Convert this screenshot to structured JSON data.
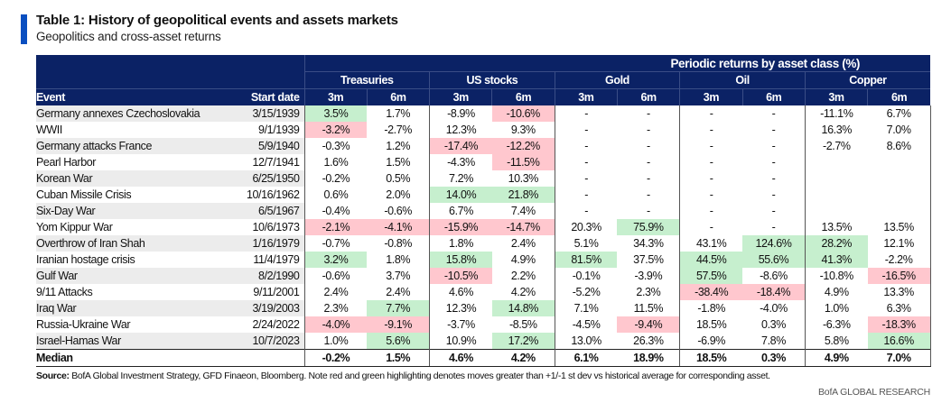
{
  "header": {
    "title": "Table 1: History of geopolitical events and assets markets",
    "subtitle": "Geopolitics and cross-asset returns"
  },
  "table": {
    "group_header": "Periodic returns by asset class (%)",
    "col_event": "Event",
    "col_date": "Start date",
    "assets": [
      "Treasuries",
      "US stocks",
      "Gold",
      "Oil",
      "Copper"
    ],
    "periods": [
      "3m",
      "6m"
    ],
    "highlight_colors": {
      "green": "#c6efce",
      "red": "#ffc7ce"
    },
    "rows": [
      {
        "event": "Germany annexes Czechoslovakia",
        "date": "3/15/1939",
        "values": [
          "3.5%",
          "1.7%",
          "-8.9%",
          "-10.6%",
          "-",
          "-",
          "-",
          "-",
          "-11.1%",
          "6.7%"
        ],
        "highlights": [
          "green",
          "",
          "",
          "red",
          "",
          "",
          "",
          "",
          "",
          ""
        ]
      },
      {
        "event": "WWII",
        "date": "9/1/1939",
        "values": [
          "-3.2%",
          "-2.7%",
          "12.3%",
          "9.3%",
          "-",
          "-",
          "-",
          "-",
          "16.3%",
          "7.0%"
        ],
        "highlights": [
          "red",
          "",
          "",
          "",
          "",
          "",
          "",
          "",
          "",
          ""
        ]
      },
      {
        "event": "Germany attacks France",
        "date": "5/9/1940",
        "values": [
          "-0.3%",
          "1.2%",
          "-17.4%",
          "-12.2%",
          "-",
          "-",
          "-",
          "-",
          "-2.7%",
          "8.6%"
        ],
        "highlights": [
          "",
          "",
          "red",
          "red",
          "",
          "",
          "",
          "",
          "",
          ""
        ]
      },
      {
        "event": "Pearl Harbor",
        "date": "12/7/1941",
        "values": [
          "1.6%",
          "1.5%",
          "-4.3%",
          "-11.5%",
          "-",
          "-",
          "-",
          "-",
          "",
          ""
        ],
        "highlights": [
          "",
          "",
          "",
          "red",
          "",
          "",
          "",
          "",
          "",
          ""
        ]
      },
      {
        "event": "Korean War",
        "date": "6/25/1950",
        "values": [
          "-0.2%",
          "0.5%",
          "7.2%",
          "10.3%",
          "-",
          "-",
          "-",
          "-",
          "",
          ""
        ],
        "highlights": [
          "",
          "",
          "",
          "",
          "",
          "",
          "",
          "",
          "",
          ""
        ]
      },
      {
        "event": "Cuban Missile Crisis",
        "date": "10/16/1962",
        "values": [
          "0.6%",
          "2.0%",
          "14.0%",
          "21.8%",
          "-",
          "-",
          "-",
          "-",
          "",
          ""
        ],
        "highlights": [
          "",
          "",
          "green",
          "green",
          "",
          "",
          "",
          "",
          "",
          ""
        ]
      },
      {
        "event": "Six-Day War",
        "date": "6/5/1967",
        "values": [
          "-0.4%",
          "-0.6%",
          "6.7%",
          "7.4%",
          "-",
          "-",
          "-",
          "-",
          "",
          ""
        ],
        "highlights": [
          "",
          "",
          "",
          "",
          "",
          "",
          "",
          "",
          "",
          ""
        ]
      },
      {
        "event": "Yom Kippur War",
        "date": "10/6/1973",
        "values": [
          "-2.1%",
          "-4.1%",
          "-15.9%",
          "-14.7%",
          "20.3%",
          "75.9%",
          "-",
          "-",
          "13.5%",
          "13.5%"
        ],
        "highlights": [
          "red",
          "red",
          "red",
          "red",
          "",
          "green",
          "",
          "",
          "",
          ""
        ]
      },
      {
        "event": "Overthrow of Iran Shah",
        "date": "1/16/1979",
        "values": [
          "-0.7%",
          "-0.8%",
          "1.8%",
          "2.4%",
          "5.1%",
          "34.3%",
          "43.1%",
          "124.6%",
          "28.2%",
          "12.1%"
        ],
        "highlights": [
          "",
          "",
          "",
          "",
          "",
          "",
          "",
          "green",
          "green",
          ""
        ]
      },
      {
        "event": "Iranian hostage crisis",
        "date": "11/4/1979",
        "values": [
          "3.2%",
          "1.8%",
          "15.8%",
          "4.9%",
          "81.5%",
          "37.5%",
          "44.5%",
          "55.6%",
          "41.3%",
          "-2.2%"
        ],
        "highlights": [
          "green",
          "",
          "green",
          "",
          "green",
          "",
          "green",
          "green",
          "green",
          ""
        ]
      },
      {
        "event": "Gulf War",
        "date": "8/2/1990",
        "values": [
          "-0.6%",
          "3.7%",
          "-10.5%",
          "2.2%",
          "-0.1%",
          "-3.9%",
          "57.5%",
          "-8.6%",
          "-10.8%",
          "-16.5%"
        ],
        "highlights": [
          "",
          "",
          "red",
          "",
          "",
          "",
          "green",
          "",
          "",
          "red"
        ]
      },
      {
        "event": "9/11 Attacks",
        "date": "9/11/2001",
        "values": [
          "2.4%",
          "2.4%",
          "4.6%",
          "4.2%",
          "-5.2%",
          "2.3%",
          "-38.4%",
          "-18.4%",
          "4.9%",
          "13.3%"
        ],
        "highlights": [
          "",
          "",
          "",
          "",
          "",
          "",
          "red",
          "red",
          "",
          ""
        ]
      },
      {
        "event": "Iraq War",
        "date": "3/19/2003",
        "values": [
          "2.3%",
          "7.7%",
          "12.3%",
          "14.8%",
          "7.1%",
          "11.5%",
          "-1.8%",
          "-4.0%",
          "1.0%",
          "6.3%"
        ],
        "highlights": [
          "",
          "green",
          "",
          "green",
          "",
          "",
          "",
          "",
          "",
          ""
        ]
      },
      {
        "event": "Russia-Ukraine War",
        "date": "2/24/2022",
        "values": [
          "-4.0%",
          "-9.1%",
          "-3.7%",
          "-8.5%",
          "-4.5%",
          "-9.4%",
          "18.5%",
          "0.3%",
          "-6.3%",
          "-18.3%"
        ],
        "highlights": [
          "red",
          "red",
          "",
          "",
          "",
          "red",
          "",
          "",
          "",
          "red"
        ]
      },
      {
        "event": "Israel-Hamas War",
        "date": "10/7/2023",
        "values": [
          "1.0%",
          "5.6%",
          "10.9%",
          "17.2%",
          "13.0%",
          "26.3%",
          "-6.9%",
          "7.8%",
          "5.8%",
          "16.6%"
        ],
        "highlights": [
          "",
          "green",
          "",
          "green",
          "",
          "",
          "",
          "",
          "",
          "green"
        ]
      }
    ],
    "median": {
      "label": "Median",
      "values": [
        "-0.2%",
        "1.5%",
        "4.6%",
        "4.2%",
        "6.1%",
        "18.9%",
        "18.5%",
        "0.3%",
        "4.9%",
        "7.0%"
      ]
    }
  },
  "footer": {
    "source_label": "Source:",
    "source_text": " BofA Global Investment Strategy, GFD Finaeon, Bloomberg. Note red and green highlighting denotes moves greater than +1/-1 st dev vs historical average for corresponding asset.",
    "brand": "BofA GLOBAL RESEARCH"
  }
}
